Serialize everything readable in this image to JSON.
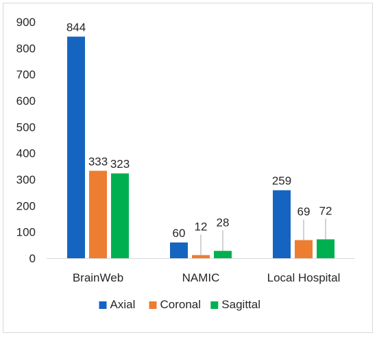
{
  "chart_data": {
    "type": "bar",
    "title": "",
    "xlabel": "",
    "ylabel": "",
    "categories": [
      "BrainWeb",
      "NAMIC",
      "Local Hospital"
    ],
    "series": [
      {
        "name": "Axial",
        "color": "#1565c0",
        "values": [
          844,
          60,
          259
        ]
      },
      {
        "name": "Coronal",
        "color": "#ed7d31",
        "values": [
          333,
          12,
          69
        ]
      },
      {
        "name": "Sagittal",
        "color": "#00b050",
        "values": [
          323,
          28,
          72
        ]
      }
    ],
    "ylim": [
      0,
      900
    ],
    "yticks": [
      0,
      100,
      200,
      300,
      400,
      500,
      600,
      700,
      800,
      900
    ],
    "grid": false,
    "legend_position": "bottom"
  }
}
